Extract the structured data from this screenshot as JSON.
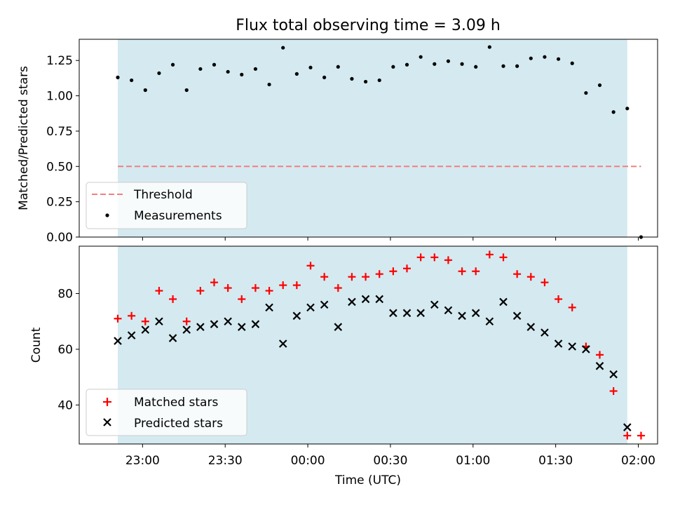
{
  "chart_data": {
    "title": "Flux total observing time = 3.09 h",
    "xlabel": "Time (UTC)",
    "x_ticks": [
      "23:00",
      "23:30",
      "00:00",
      "00:30",
      "01:00",
      "01:30",
      "02:00"
    ],
    "observing_window": {
      "start": "22:51",
      "end": "01:56",
      "color": "#d4eaf0"
    },
    "panels": [
      {
        "type": "scatter",
        "ylabel": "Matched/Predicted stars",
        "ylim": [
          0,
          1.4
        ],
        "y_ticks": [
          "0.00",
          "0.25",
          "0.50",
          "0.75",
          "1.00",
          "1.25"
        ],
        "legend_placement": "lower-left",
        "threshold": {
          "name": "Threshold",
          "value": 0.5,
          "x_start": "22:51",
          "x_end": "02:01",
          "color": "#f08080"
        },
        "series": [
          {
            "name": "Measurements",
            "color": "#000000",
            "marker": "dot",
            "x": [
              "22:51",
              "22:56",
              "23:01",
              "23:06",
              "23:11",
              "23:16",
              "23:21",
              "23:26",
              "23:31",
              "23:36",
              "23:41",
              "23:46",
              "23:51",
              "23:56",
              "00:01",
              "00:06",
              "00:11",
              "00:16",
              "00:21",
              "00:26",
              "00:31",
              "00:36",
              "00:41",
              "00:46",
              "00:51",
              "00:56",
              "01:01",
              "01:06",
              "01:11",
              "01:16",
              "01:21",
              "01:26",
              "01:31",
              "01:36",
              "01:41",
              "01:46",
              "01:51",
              "01:56",
              "02:01"
            ],
            "y": [
              1.13,
              1.11,
              1.04,
              1.16,
              1.22,
              1.04,
              1.19,
              1.22,
              1.17,
              1.15,
              1.19,
              1.08,
              1.34,
              1.155,
              1.2,
              1.13,
              1.205,
              1.12,
              1.1,
              1.11,
              1.205,
              1.22,
              1.275,
              1.225,
              1.245,
              1.225,
              1.205,
              1.345,
              1.21,
              1.21,
              1.265,
              1.275,
              1.26,
              1.23,
              1.02,
              1.075,
              0.885,
              0.91,
              0.0
            ]
          }
        ]
      },
      {
        "type": "scatter",
        "ylabel": "Count",
        "ylim": [
          26,
          97
        ],
        "y_ticks": [
          "40",
          "60",
          "80"
        ],
        "legend_placement": "lower-left",
        "series": [
          {
            "name": "Matched stars",
            "color": "#ff0000",
            "marker": "plus",
            "x": [
              "22:51",
              "22:56",
              "23:01",
              "23:06",
              "23:11",
              "23:16",
              "23:21",
              "23:26",
              "23:31",
              "23:36",
              "23:41",
              "23:46",
              "23:51",
              "23:56",
              "00:01",
              "00:06",
              "00:11",
              "00:16",
              "00:21",
              "00:26",
              "00:31",
              "00:36",
              "00:41",
              "00:46",
              "00:51",
              "00:56",
              "01:01",
              "01:06",
              "01:11",
              "01:16",
              "01:21",
              "01:26",
              "01:31",
              "01:36",
              "01:41",
              "01:46",
              "01:51",
              "01:56",
              "02:01"
            ],
            "y": [
              71,
              72,
              70,
              81,
              78,
              70,
              81,
              84,
              82,
              78,
              82,
              81,
              83,
              83,
              90,
              86,
              82,
              86,
              86,
              87,
              88,
              89,
              93,
              93,
              92,
              88,
              88,
              94,
              93,
              87,
              86,
              84,
              78,
              75,
              61,
              58,
              45,
              29,
              29
            ]
          },
          {
            "name": "Predicted stars",
            "color": "#000000",
            "marker": "x",
            "x": [
              "22:51",
              "22:56",
              "23:01",
              "23:06",
              "23:11",
              "23:16",
              "23:21",
              "23:26",
              "23:31",
              "23:36",
              "23:41",
              "23:46",
              "23:51",
              "23:56",
              "00:01",
              "00:06",
              "00:11",
              "00:16",
              "00:21",
              "00:26",
              "00:31",
              "00:36",
              "00:41",
              "00:46",
              "00:51",
              "00:56",
              "01:01",
              "01:06",
              "01:11",
              "01:16",
              "01:21",
              "01:26",
              "01:31",
              "01:36",
              "01:41",
              "01:46",
              "01:51",
              "01:56"
            ],
            "y": [
              63,
              65,
              67,
              70,
              64,
              67,
              68,
              69,
              70,
              68,
              69,
              75,
              62,
              72,
              75,
              76,
              68,
              77,
              78,
              78,
              73,
              73,
              73,
              76,
              74,
              72,
              73,
              70,
              77,
              72,
              68,
              66,
              62,
              61,
              60,
              54,
              51,
              32
            ]
          }
        ]
      }
    ]
  }
}
